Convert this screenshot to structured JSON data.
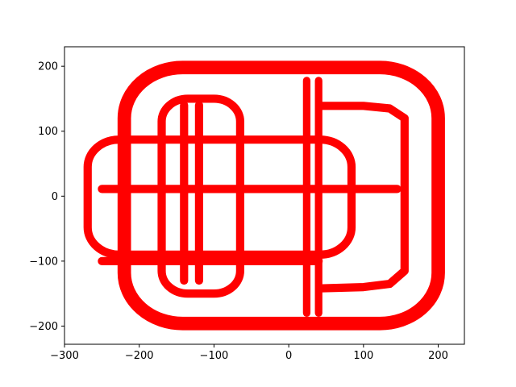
{
  "chart_data": {
    "type": "line",
    "title": "",
    "xlabel": "",
    "ylabel": "",
    "xlim": [
      -300,
      235
    ],
    "ylim": [
      -228,
      230
    ],
    "grid": false,
    "xticks": [
      -300,
      -200,
      -100,
      0,
      100,
      200
    ],
    "xtick_labels": [
      "−300",
      "−200",
      "−100",
      "0",
      "100",
      "200"
    ],
    "yticks": [
      200,
      100,
      0,
      -100,
      -200
    ],
    "ytick_labels": [
      "200",
      "100",
      "0",
      "−100",
      "−200"
    ],
    "series": [
      {
        "color": "#ff0000",
        "segments": [
          {
            "shape": "rounded-rect",
            "x0": -220,
            "y0": -196,
            "x1": 200,
            "y1": 198,
            "r": 78,
            "width": 18
          },
          {
            "shape": "rounded-rect",
            "x0": -170,
            "y0": -150,
            "x1": -65,
            "y1": 150,
            "r": 35,
            "width": 11
          },
          {
            "shape": "rounded-rect",
            "x0": -269,
            "y0": -90,
            "x1": 84,
            "y1": 87,
            "r": 42,
            "width": 11
          },
          {
            "shape": "path",
            "points": [
              [
                41,
                139
              ],
              [
                100,
                139
              ],
              [
                135,
                135
              ],
              [
                155,
                120
              ],
              [
                155,
                -115
              ],
              [
                135,
                -135
              ],
              [
                100,
                -140
              ],
              [
                41,
                -142
              ]
            ],
            "width": 11
          },
          {
            "shape": "path",
            "points": [
              [
                -250,
                11
              ],
              [
                145,
                11
              ]
            ],
            "width": 11
          },
          {
            "shape": "path",
            "points": [
              [
                -250,
                -100
              ],
              [
                40,
                -100
              ]
            ],
            "width": 11
          },
          {
            "shape": "path",
            "points": [
              [
                -140,
                140
              ],
              [
                -140,
                -130
              ]
            ],
            "width": 11
          },
          {
            "shape": "path",
            "points": [
              [
                -120,
                140
              ],
              [
                -120,
                -130
              ]
            ],
            "width": 11
          },
          {
            "shape": "path",
            "points": [
              [
                24,
                178
              ],
              [
                24,
                -180
              ]
            ],
            "width": 10
          },
          {
            "shape": "path",
            "points": [
              [
                40,
                178
              ],
              [
                40,
                -180
              ]
            ],
            "width": 10
          }
        ]
      }
    ]
  }
}
